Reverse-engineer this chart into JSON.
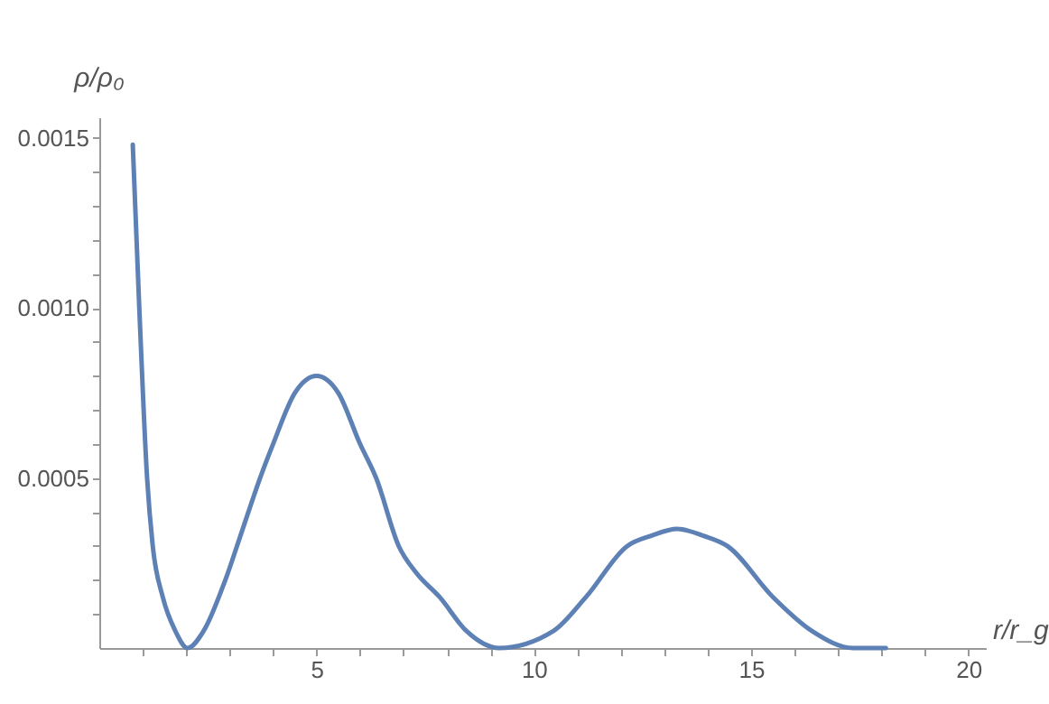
{
  "chart_data": {
    "type": "line",
    "xlabel": "r/r_g",
    "ylabel": "ρ/ρ₀",
    "xlim": [
      0,
      20.4
    ],
    "ylim": [
      0,
      0.00156
    ],
    "xticks": [
      {
        "value": 1,
        "label": null
      },
      {
        "value": 2,
        "label": null
      },
      {
        "value": 3,
        "label": null
      },
      {
        "value": 4,
        "label": null
      },
      5,
      {
        "value": 6,
        "label": null
      },
      {
        "value": 7,
        "label": null
      },
      {
        "value": 8,
        "label": null
      },
      {
        "value": 9,
        "label": null
      },
      10,
      {
        "value": 11,
        "label": null
      },
      {
        "value": 12,
        "label": null
      },
      {
        "value": 13,
        "label": null
      },
      {
        "value": 14,
        "label": null
      },
      15,
      {
        "value": 16,
        "label": null
      },
      {
        "value": 17,
        "label": null
      },
      {
        "value": 18,
        "label": null
      },
      {
        "value": 19,
        "label": null
      },
      20
    ],
    "yticks": [
      {
        "value": 0.0001,
        "label": null
      },
      {
        "value": 0.0002,
        "label": null
      },
      {
        "value": 0.0003,
        "label": null
      },
      {
        "value": 0.0004,
        "label": null
      },
      {
        "value": 0.0005,
        "label": "0.0005"
      },
      {
        "value": 0.0006,
        "label": null
      },
      {
        "value": 0.0007,
        "label": null
      },
      {
        "value": 0.0008,
        "label": null
      },
      {
        "value": 0.0009,
        "label": null
      },
      {
        "value": 0.001,
        "label": "0.0010"
      },
      {
        "value": 0.0011,
        "label": null
      },
      {
        "value": 0.0012,
        "label": null
      },
      {
        "value": 0.0013,
        "label": null
      },
      {
        "value": 0.0014,
        "label": null
      },
      {
        "value": 0.0015,
        "label": "0.0015"
      }
    ],
    "grid": false,
    "marker": "none",
    "line_style": "solid",
    "series": [
      {
        "color": "#5e81b5",
        "x": [
          0.77,
          0.92,
          1.1,
          1.23,
          1.46,
          1.75,
          2.03,
          2.4,
          2.9,
          3.3,
          3.7,
          4.0,
          4.5,
          5.0,
          5.5,
          6.0,
          6.37,
          6.89,
          7.3,
          7.83,
          8.45,
          9.2,
          10.45,
          11.2,
          12.15,
          12.7,
          13.3,
          13.9,
          14.45,
          15.5,
          16.4,
          17.35,
          18.1
        ],
        "values": [
          0.00148,
          0.001,
          0.0005,
          0.0003,
          0.00015,
          5e-05,
          0,
          5e-05,
          0.0002,
          0.00035,
          0.0005,
          0.0006,
          0.00075,
          0.0008,
          0.00075,
          0.0006,
          0.0005,
          0.0003,
          0.00022,
          0.00015,
          5e-05,
          0,
          5e-05,
          0.00015,
          0.0003,
          0.00033,
          0.00035,
          0.00033,
          0.0003,
          0.00015,
          5e-05,
          0,
          0
        ]
      }
    ]
  }
}
